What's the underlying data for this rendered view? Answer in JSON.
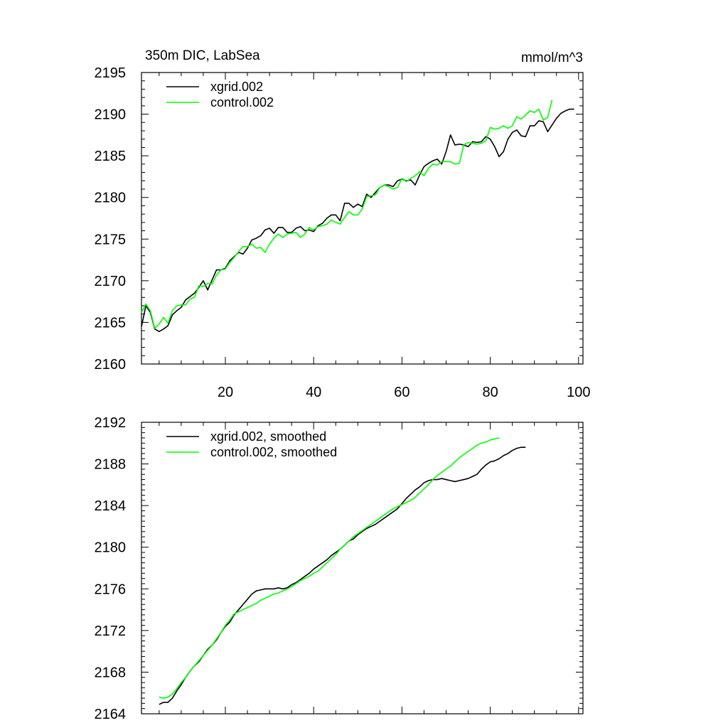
{
  "chart_data": [
    {
      "type": "line",
      "title": "350m DIC, LabSea",
      "units": "mmol/m^3",
      "xlim": [
        1,
        101
      ],
      "ylim": [
        2160,
        2195
      ],
      "xticks": [
        20,
        40,
        60,
        80,
        100
      ],
      "yticks": [
        2160,
        2165,
        2170,
        2175,
        2180,
        2185,
        2190,
        2195
      ],
      "grid": false,
      "legend_position": "top-left",
      "series": [
        {
          "name": "xgrid.002",
          "color": "#000000",
          "x_start": 1,
          "values": [
            2164.5,
            2167.0,
            2166.2,
            2164.2,
            2163.9,
            2164.2,
            2164.6,
            2165.9,
            2166.4,
            2166.8,
            2167.7,
            2168.1,
            2168.5,
            2169.2,
            2170.0,
            2168.9,
            2170.1,
            2171.3,
            2171.3,
            2171.5,
            2172.4,
            2172.9,
            2173.4,
            2173.2,
            2173.9,
            2174.9,
            2175.1,
            2175.4,
            2176.1,
            2176.3,
            2175.7,
            2176.4,
            2176.4,
            2175.8,
            2175.8,
            2176.3,
            2176.5,
            2176.0,
            2176.1,
            2175.9,
            2176.6,
            2176.9,
            2177.5,
            2177.9,
            2177.9,
            2177.2,
            2179.3,
            2179.3,
            2178.8,
            2179.2,
            2178.9,
            2180.4,
            2180.0,
            2180.6,
            2181.2,
            2181.5,
            2181.5,
            2181.3,
            2182.0,
            2182.2,
            2182.0,
            2182.1,
            2181.5,
            2182.7,
            2183.7,
            2184.1,
            2184.4,
            2184.6,
            2184.0,
            2185.5,
            2187.5,
            2186.3,
            2186.4,
            2186.3,
            2186.1,
            2186.7,
            2186.6,
            2186.7,
            2187.3,
            2187.0,
            2186.1,
            2184.9,
            2185.5,
            2187.0,
            2187.8,
            2188.1,
            2187.4,
            2187.3,
            2188.6,
            2188.6,
            2189.2,
            2189.1,
            2187.9,
            2188.7,
            2189.5,
            2190.1,
            2190.4,
            2190.6,
            2190.6
          ]
        },
        {
          "name": "control.002",
          "color": "#00ff00",
          "x_start": 1,
          "values": [
            2166.2,
            2167.2,
            2166.4,
            2164.3,
            2164.8,
            2165.6,
            2164.9,
            2166.4,
            2167.0,
            2167.1,
            2167.1,
            2167.8,
            2168.0,
            2169.4,
            2169.3,
            2169.7,
            2169.6,
            2170.7,
            2171.3,
            2171.4,
            2172.2,
            2172.8,
            2173.5,
            2174.1,
            2174.1,
            2174.4,
            2173.9,
            2174.0,
            2173.4,
            2174.4,
            2175.1,
            2175.6,
            2175.2,
            2175.6,
            2175.7,
            2175.8,
            2175.2,
            2175.6,
            2176.4,
            2176.1,
            2176.5,
            2176.6,
            2176.8,
            2177.3,
            2177.0,
            2176.8,
            2177.6,
            2178.3,
            2177.9,
            2177.9,
            2178.6,
            2180.1,
            2180.2,
            2180.3,
            2181.2,
            2181.5,
            2181.3,
            2181.0,
            2181.2,
            2182.3,
            2181.9,
            2182.3,
            2182.6,
            2183.1,
            2182.6,
            2183.5,
            2184.0,
            2183.9,
            2184.3,
            2184.3,
            2184.3,
            2184.0,
            2184.1,
            2186.3,
            2186.6,
            2186.5,
            2186.4,
            2186.5,
            2186.8,
            2188.4,
            2188.2,
            2188.3,
            2188.6,
            2188.3,
            2188.6,
            2189.7,
            2189.4,
            2189.9,
            2190.4,
            2190.2,
            2190.6,
            2189.3,
            2189.6,
            2191.7
          ]
        }
      ]
    },
    {
      "type": "line",
      "xlim": [
        1,
        101
      ],
      "ylim": [
        2164,
        2192
      ],
      "xticks": [
        20,
        40,
        60,
        80,
        100
      ],
      "yticks": [
        2164,
        2168,
        2172,
        2176,
        2180,
        2184,
        2188,
        2192
      ],
      "grid": false,
      "legend_position": "top-left",
      "series": [
        {
          "name": "xgrid.002, smoothed",
          "color": "#000000",
          "x_start": 5,
          "values": [
            2164.9,
            2165.1,
            2165.1,
            2165.5,
            2166.2,
            2166.8,
            2167.5,
            2168.1,
            2168.6,
            2169.0,
            2169.6,
            2170.2,
            2170.6,
            2171.1,
            2171.8,
            2172.4,
            2172.8,
            2173.5,
            2174.0,
            2174.5,
            2175.0,
            2175.5,
            2175.8,
            2175.9,
            2176.0,
            2176.0,
            2176.0,
            2176.1,
            2176.0,
            2176.1,
            2176.4,
            2176.6,
            2176.9,
            2177.2,
            2177.5,
            2177.9,
            2178.2,
            2178.5,
            2178.8,
            2179.2,
            2179.5,
            2179.8,
            2180.2,
            2180.6,
            2180.8,
            2181.2,
            2181.5,
            2181.8,
            2182.0,
            2182.2,
            2182.5,
            2182.8,
            2183.1,
            2183.4,
            2183.7,
            2184.2,
            2184.7,
            2185.1,
            2185.5,
            2185.8,
            2186.2,
            2186.4,
            2186.5,
            2186.5,
            2186.6,
            2186.5,
            2186.4,
            2186.3,
            2186.4,
            2186.5,
            2186.6,
            2186.8,
            2187.0,
            2187.5,
            2187.9,
            2188.2,
            2188.3,
            2188.5,
            2188.8,
            2189.0,
            2189.3,
            2189.5,
            2189.6,
            2189.6
          ]
        },
        {
          "name": "control.002, smoothed",
          "color": "#00ff00",
          "x_start": 5,
          "values": [
            2165.6,
            2165.5,
            2165.6,
            2165.9,
            2166.4,
            2167.0,
            2167.5,
            2168.1,
            2168.6,
            2169.1,
            2169.6,
            2170.1,
            2170.6,
            2171.2,
            2171.8,
            2172.5,
            2173.0,
            2173.6,
            2173.8,
            2174.0,
            2174.2,
            2174.4,
            2174.6,
            2174.9,
            2175.1,
            2175.3,
            2175.5,
            2175.6,
            2175.8,
            2176.0,
            2176.2,
            2176.5,
            2176.8,
            2177.0,
            2177.2,
            2177.5,
            2177.7,
            2178.1,
            2178.5,
            2178.9,
            2179.3,
            2179.8,
            2180.2,
            2180.6,
            2181.0,
            2181.3,
            2181.6,
            2181.9,
            2182.2,
            2182.5,
            2182.8,
            2183.1,
            2183.4,
            2183.7,
            2183.9,
            2184.1,
            2184.3,
            2184.5,
            2184.8,
            2185.2,
            2185.6,
            2186.0,
            2186.5,
            2186.9,
            2187.2,
            2187.5,
            2187.8,
            2188.2,
            2188.6,
            2188.9,
            2189.2,
            2189.5,
            2189.8,
            2190.0,
            2190.1,
            2190.3,
            2190.4,
            2190.5
          ]
        }
      ]
    }
  ]
}
